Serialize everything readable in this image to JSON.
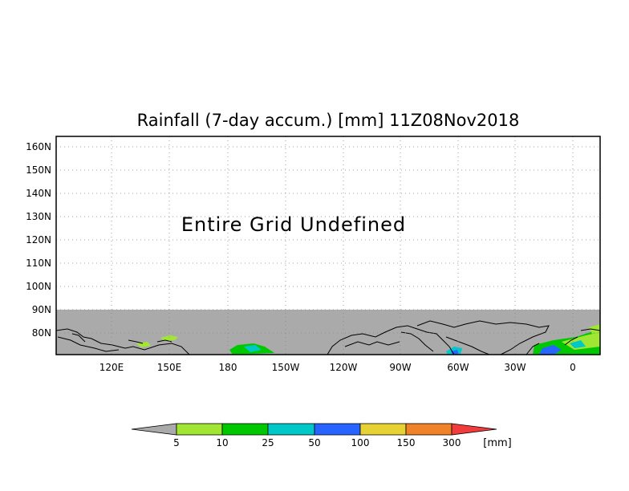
{
  "title": "Rainfall (7-day accum.) [mm] 11Z08Nov2018",
  "status_message": "Entire Grid Undefined",
  "chart_data": {
    "type": "map",
    "lat_labels": [
      "160N",
      "150N",
      "140N",
      "130N",
      "120N",
      "110N",
      "100N",
      "90N",
      "80N"
    ],
    "lon_labels": [
      "120E",
      "150E",
      "180",
      "150W",
      "120W",
      "90W",
      "60W",
      "30W",
      "0"
    ],
    "grid": true,
    "undefined_region_color": "#aaaaaa",
    "colorbar": {
      "thresholds": [
        "5",
        "10",
        "25",
        "50",
        "100",
        "150",
        "300"
      ],
      "unit": "[mm]",
      "colors": [
        "#aaaaaa",
        "#a0e632",
        "#00c800",
        "#00c8c8",
        "#2864ff",
        "#e6d232",
        "#f08228",
        "#f03c3c"
      ]
    }
  }
}
